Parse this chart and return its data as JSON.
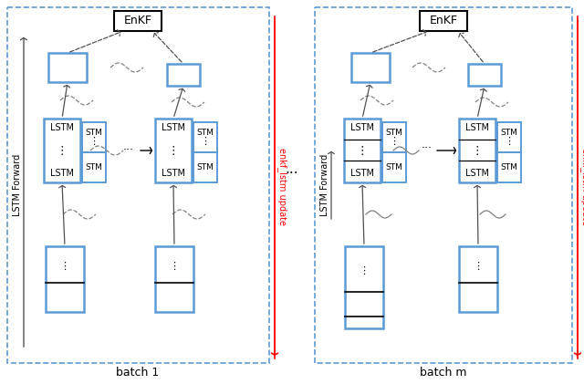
{
  "bg_color": "#ffffff",
  "blue": "#5b9bd5",
  "red": "#ff0000",
  "black": "#000000",
  "gray": "#909090",
  "darkgray": "#505050",
  "batch1_label": "batch 1",
  "batchm_label": "batch m",
  "enkf_label": "EnKF",
  "lstm_forward_label": "LSTM Forward",
  "enkf_lstm_update_label": "enkf_lstm update",
  "dots": "⋮",
  "hdots": "···"
}
